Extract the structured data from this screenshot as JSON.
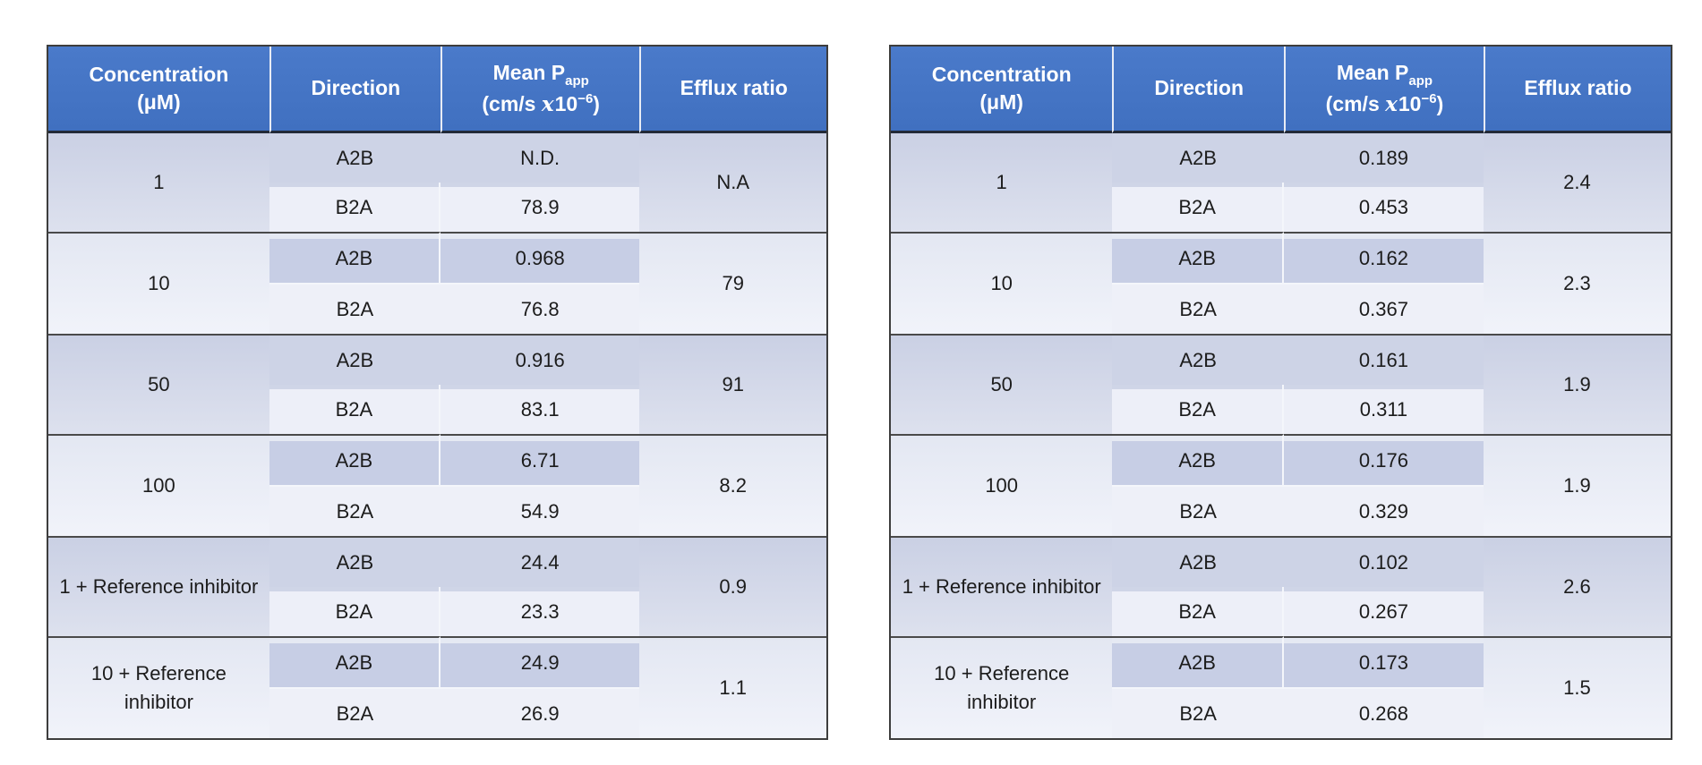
{
  "header": {
    "concentration_line1": "Concentration",
    "concentration_line2": "(μM)",
    "direction": "Direction",
    "mean_line1_text": "Mean P",
    "mean_line1_sub": "app",
    "mean_line2_prefix": "(cm/s ",
    "mean_line2_x": "x",
    "mean_line2_ten": "10",
    "mean_line2_exp": "−6",
    "mean_line2_suffix": ")",
    "efflux": "Efflux ratio"
  },
  "colors": {
    "header_bg": "#4473C5",
    "header_text": "#FFFFFF",
    "band_dark": "#CDD3E6",
    "band_light": "#E9ECF5",
    "stripe_dark": "#C7CEE5",
    "stripe_light": "#EDEFF8",
    "group_border": "#4A4A4A",
    "outer_border": "#3D3D3D",
    "body_text": "#1C1C1C"
  },
  "chart_data": [
    {
      "type": "table",
      "position": "left",
      "columns": [
        "Concentration (μM)",
        "Direction",
        "Mean Papp (cm/s x10−6)",
        "Efflux ratio"
      ],
      "rows": [
        {
          "concentration": "1",
          "efflux_ratio": "N.A",
          "directions": [
            {
              "direction": "A2B",
              "mean_papp": "N.D."
            },
            {
              "direction": "B2A",
              "mean_papp": "78.9"
            }
          ]
        },
        {
          "concentration": "10",
          "efflux_ratio": "79",
          "directions": [
            {
              "direction": "A2B",
              "mean_papp": "0.968"
            },
            {
              "direction": "B2A",
              "mean_papp": "76.8"
            }
          ]
        },
        {
          "concentration": "50",
          "efflux_ratio": "91",
          "directions": [
            {
              "direction": "A2B",
              "mean_papp": "0.916"
            },
            {
              "direction": "B2A",
              "mean_papp": "83.1"
            }
          ]
        },
        {
          "concentration": "100",
          "efflux_ratio": "8.2",
          "directions": [
            {
              "direction": "A2B",
              "mean_papp": "6.71"
            },
            {
              "direction": "B2A",
              "mean_papp": "54.9"
            }
          ]
        },
        {
          "concentration": "1 + Reference inhibitor",
          "efflux_ratio": "0.9",
          "directions": [
            {
              "direction": "A2B",
              "mean_papp": "24.4"
            },
            {
              "direction": "B2A",
              "mean_papp": "23.3"
            }
          ]
        },
        {
          "concentration": "10 + Reference inhibitor",
          "efflux_ratio": "1.1",
          "directions": [
            {
              "direction": "A2B",
              "mean_papp": "24.9"
            },
            {
              "direction": "B2A",
              "mean_papp": "26.9"
            }
          ]
        }
      ]
    },
    {
      "type": "table",
      "position": "right",
      "columns": [
        "Concentration (μM)",
        "Direction",
        "Mean Papp (cm/s x10−6)",
        "Efflux ratio"
      ],
      "rows": [
        {
          "concentration": "1",
          "efflux_ratio": "2.4",
          "directions": [
            {
              "direction": "A2B",
              "mean_papp": "0.189"
            },
            {
              "direction": "B2A",
              "mean_papp": "0.453"
            }
          ]
        },
        {
          "concentration": "10",
          "efflux_ratio": "2.3",
          "directions": [
            {
              "direction": "A2B",
              "mean_papp": "0.162"
            },
            {
              "direction": "B2A",
              "mean_papp": "0.367"
            }
          ]
        },
        {
          "concentration": "50",
          "efflux_ratio": "1.9",
          "directions": [
            {
              "direction": "A2B",
              "mean_papp": "0.161"
            },
            {
              "direction": "B2A",
              "mean_papp": "0.311"
            }
          ]
        },
        {
          "concentration": "100",
          "efflux_ratio": "1.9",
          "directions": [
            {
              "direction": "A2B",
              "mean_papp": "0.176"
            },
            {
              "direction": "B2A",
              "mean_papp": "0.329"
            }
          ]
        },
        {
          "concentration": "1 + Reference inhibitor",
          "efflux_ratio": "2.6",
          "directions": [
            {
              "direction": "A2B",
              "mean_papp": "0.102"
            },
            {
              "direction": "B2A",
              "mean_papp": "0.267"
            }
          ]
        },
        {
          "concentration": "10 + Reference inhibitor",
          "efflux_ratio": "1.5",
          "directions": [
            {
              "direction": "A2B",
              "mean_papp": "0.173"
            },
            {
              "direction": "B2A",
              "mean_papp": "0.268"
            }
          ]
        }
      ]
    }
  ]
}
